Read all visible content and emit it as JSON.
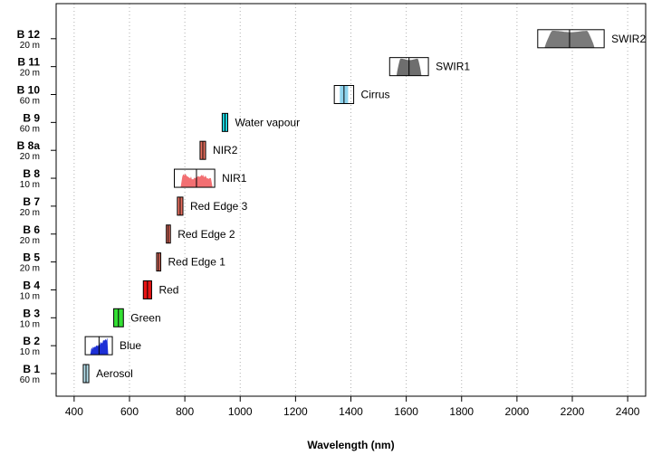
{
  "chart_data": {
    "type": "range",
    "xlabel": "Wavelength (nm)",
    "xlim": [
      335,
      2465
    ],
    "xticks": [
      400,
      600,
      800,
      1000,
      1200,
      1400,
      1600,
      1800,
      2000,
      2200,
      2400
    ],
    "grid": "vertical dotted",
    "bands": [
      {
        "code": "B 1",
        "resolution": "60 m",
        "name": "Aerosol",
        "center": 443,
        "range": [
          433,
          453
        ],
        "color": "#b8e2ee",
        "shape": "flat"
      },
      {
        "code": "B 2",
        "resolution": "10 m",
        "name": "Blue",
        "center": 490,
        "range": [
          458,
          523
        ],
        "color": "#1d2fd6",
        "shape": "noisy",
        "box": [
          440,
          538
        ]
      },
      {
        "code": "B 3",
        "resolution": "10 m",
        "name": "Green",
        "center": 560,
        "range": [
          543,
          578
        ],
        "color": "#33e033",
        "shape": "flat"
      },
      {
        "code": "B 4",
        "resolution": "10 m",
        "name": "Red",
        "center": 665,
        "range": [
          650,
          680
        ],
        "color": "#e81414",
        "shape": "flat"
      },
      {
        "code": "B 5",
        "resolution": "20 m",
        "name": "Red Edge 1",
        "center": 705,
        "range": [
          698,
          713
        ],
        "color": "#e86f5f",
        "shape": "flat"
      },
      {
        "code": "B 6",
        "resolution": "20 m",
        "name": "Red Edge 2",
        "center": 740,
        "range": [
          733,
          748
        ],
        "color": "#e86f5f",
        "shape": "flat"
      },
      {
        "code": "B 7",
        "resolution": "20 m",
        "name": "Red Edge 3",
        "center": 783,
        "range": [
          773,
          793
        ],
        "color": "#e86f5f",
        "shape": "flat"
      },
      {
        "code": "B 8",
        "resolution": "10 m",
        "name": "NIR1",
        "center": 842,
        "range": [
          785,
          900
        ],
        "color": "#f26f72",
        "shape": "noisy",
        "box": [
          762,
          908
        ]
      },
      {
        "code": "B 8a",
        "resolution": "20 m",
        "name": "NIR2",
        "center": 865,
        "range": [
          855,
          875
        ],
        "color": "#e86f5f",
        "shape": "flat"
      },
      {
        "code": "B 9",
        "resolution": "60 m",
        "name": "Water vapour",
        "center": 945,
        "range": [
          935,
          955
        ],
        "color": "#1cd6e0",
        "shape": "flat"
      },
      {
        "code": "B 10",
        "resolution": "60 m",
        "name": "Cirrus",
        "center": 1375,
        "range": [
          1360,
          1390
        ],
        "color": "#8fd4ee",
        "shape": "flat",
        "box": [
          1340,
          1410
        ]
      },
      {
        "code": "B 11",
        "resolution": "20 m",
        "name": "SWIR1",
        "center": 1610,
        "range": [
          1565,
          1655
        ],
        "color": "#6e6e6e",
        "shape": "hump",
        "box": [
          1540,
          1680
        ]
      },
      {
        "code": "B 12",
        "resolution": "20 m",
        "name": "SWIR2",
        "center": 2190,
        "range": [
          2100,
          2280
        ],
        "color": "#7a7a7a",
        "shape": "hump",
        "box": [
          2075,
          2315
        ]
      }
    ]
  }
}
